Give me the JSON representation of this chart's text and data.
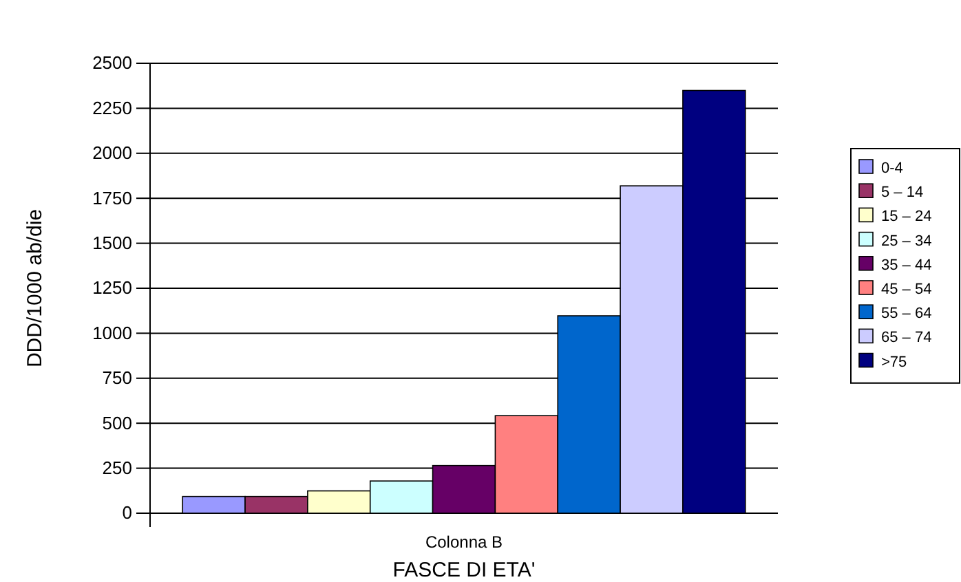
{
  "chart_data": {
    "type": "bar",
    "xlabel": "FASCE DI ETA'",
    "ylabel": "DDD/1000 ab/die",
    "categories": [
      "Colonna B"
    ],
    "series": [
      {
        "name": "0-4",
        "color": "#9999ff",
        "values": [
          93
        ]
      },
      {
        "name": "5 – 14",
        "color": "#993366",
        "values": [
          93
        ]
      },
      {
        "name": "15 – 24",
        "color": "#ffffcc",
        "values": [
          124
        ]
      },
      {
        "name": "25 – 34",
        "color": "#ccffff",
        "values": [
          179
        ]
      },
      {
        "name": "35 – 44",
        "color": "#660066",
        "values": [
          265
        ]
      },
      {
        "name": "45 – 54",
        "color": "#ff8080",
        "values": [
          542
        ]
      },
      {
        "name": "55 – 64",
        "color": "#0066cc",
        "values": [
          1097
        ]
      },
      {
        "name": "65 – 74",
        "color": "#ccccff",
        "values": [
          1819
        ]
      },
      {
        "name": ">75",
        "color": "#000080",
        "values": [
          2349
        ]
      }
    ],
    "ylim": [
      0,
      2500
    ],
    "yticks": [
      0,
      250,
      500,
      750,
      1000,
      1250,
      1500,
      1750,
      2000,
      2250,
      2500
    ],
    "grid": "y",
    "legend": "right"
  }
}
